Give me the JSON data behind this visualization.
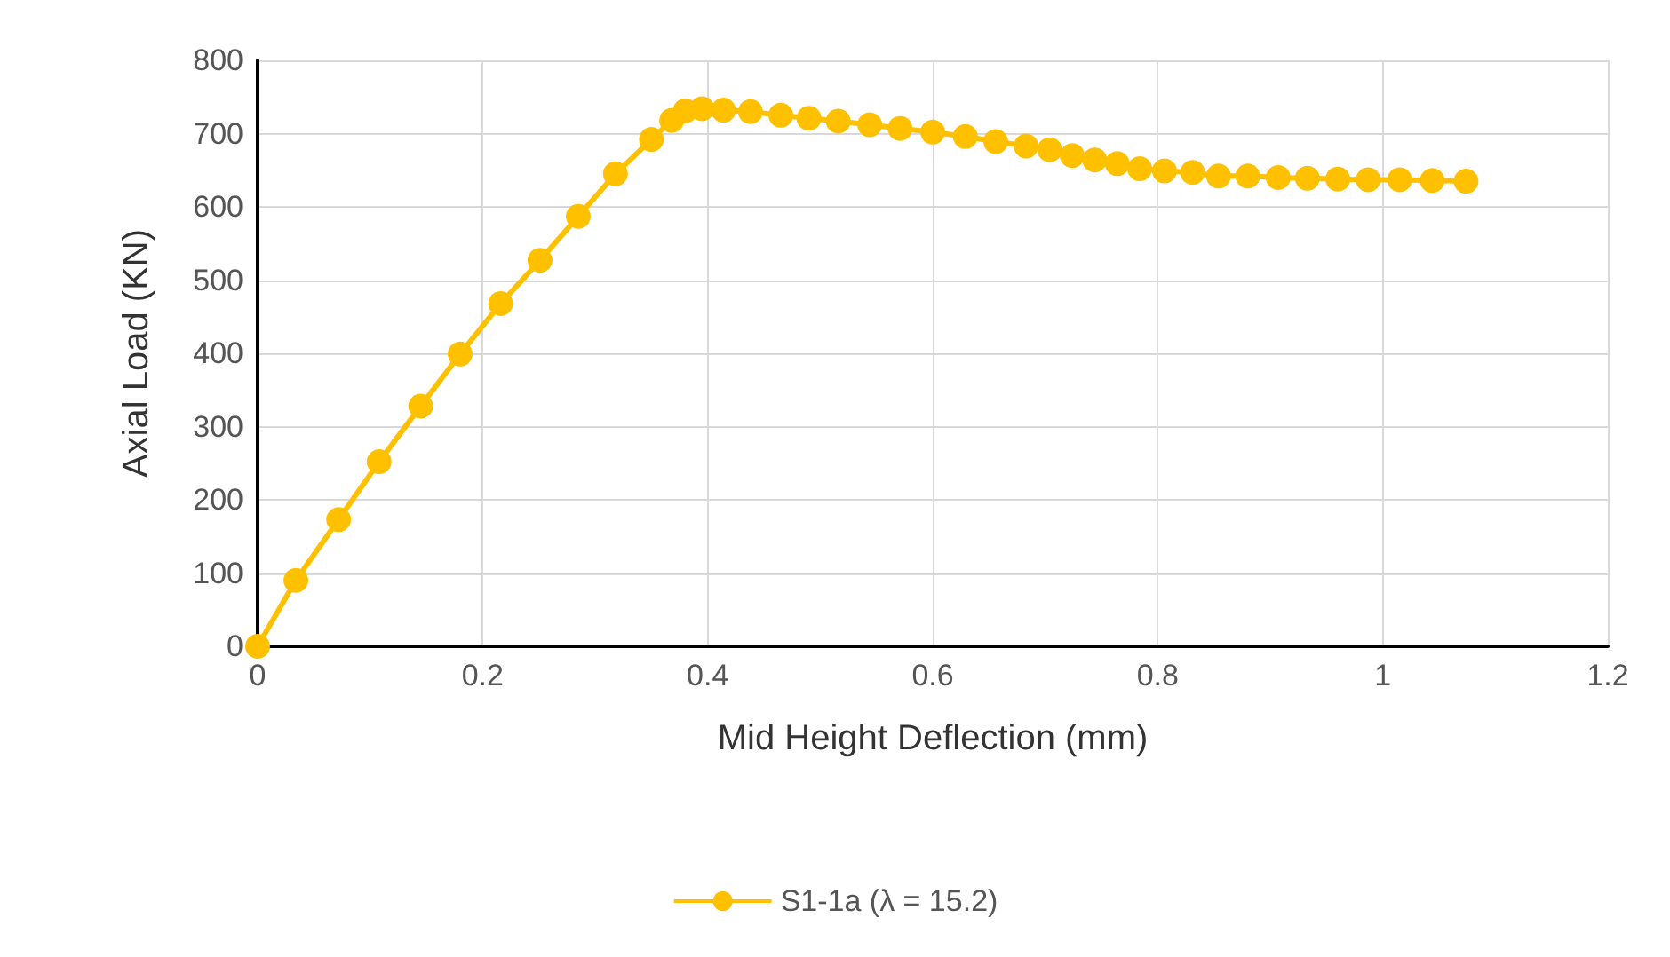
{
  "chart_data": {
    "type": "line",
    "xlabel": "Mid Height Deflection (mm)",
    "ylabel": "Axial Load (KN)",
    "xlim": [
      0,
      1.2
    ],
    "xticks": [
      0,
      0.2,
      0.4,
      0.6,
      0.8,
      1,
      1.2
    ],
    "ylim": [
      0,
      800
    ],
    "yticks": [
      0,
      100,
      200,
      300,
      400,
      500,
      600,
      700,
      800
    ],
    "grid": true,
    "legend": "bottom",
    "marker": "circle",
    "line_style": "solid",
    "series": [
      {
        "name": "S1-1a (λ = 15.2)",
        "color": "#ffc000",
        "x": [
          0,
          0.034,
          0.072,
          0.108,
          0.145,
          0.18,
          0.216,
          0.251,
          0.285,
          0.318,
          0.35,
          0.368,
          0.38,
          0.395,
          0.414,
          0.438,
          0.465,
          0.49,
          0.516,
          0.544,
          0.571,
          0.6,
          0.629,
          0.656,
          0.683,
          0.704,
          0.724,
          0.744,
          0.764,
          0.784,
          0.806,
          0.831,
          0.854,
          0.88,
          0.907,
          0.933,
          0.96,
          0.987,
          1.015,
          1.044,
          1.074
        ],
        "values": [
          0,
          90,
          173,
          252,
          328,
          399,
          468,
          527,
          587,
          645,
          692,
          718,
          731,
          734,
          732,
          730,
          725,
          721,
          717,
          712,
          707,
          702,
          696,
          689,
          683,
          678,
          670,
          664,
          659,
          652,
          649,
          647,
          642,
          642,
          640,
          639,
          638,
          637,
          637,
          636,
          635
        ]
      }
    ]
  }
}
